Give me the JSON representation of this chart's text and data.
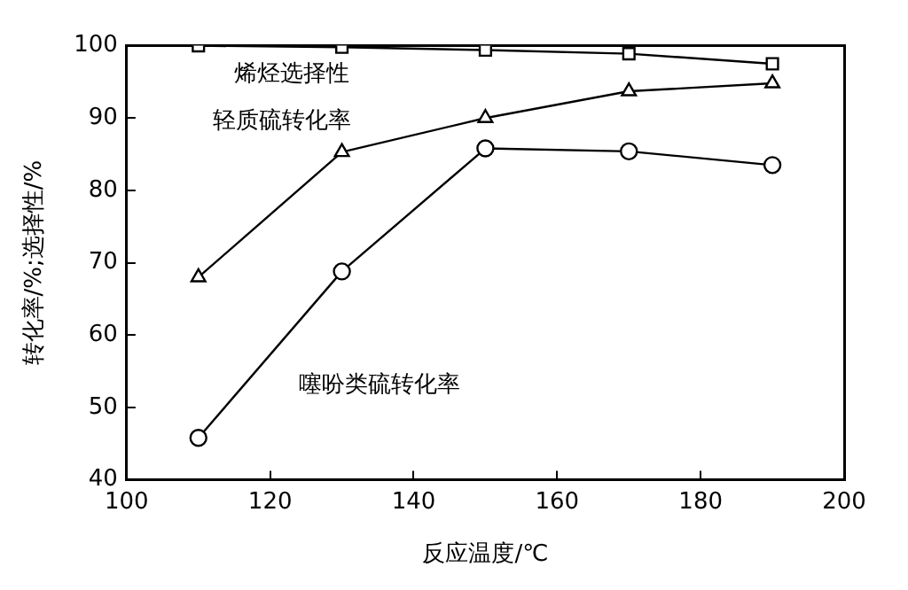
{
  "chart_data": {
    "type": "line",
    "xlabel": "反应温度/℃",
    "ylabel": "转化率/%;选择性/%",
    "x": [
      110,
      130,
      150,
      170,
      190
    ],
    "series": [
      {
        "name": "烯烃选择性",
        "color": "#000000",
        "marker": "square",
        "values": [
          100,
          99.8,
          99.4,
          98.9,
          97.5
        ]
      },
      {
        "name": "轻质硫转化率",
        "color": "#000000",
        "marker": "triangle",
        "values": [
          68,
          85.3,
          90,
          93.7,
          94.8
        ]
      },
      {
        "name": "噻吩类硫转化率",
        "color": "#000000",
        "marker": "circle",
        "values": [
          45.8,
          68.8,
          85.8,
          85.4,
          83.5
        ]
      }
    ],
    "xlim": [
      100,
      200
    ],
    "xticks": [
      100,
      120,
      140,
      160,
      180,
      200
    ],
    "ylim": [
      40,
      100
    ],
    "yticks": [
      40,
      50,
      60,
      70,
      80,
      90,
      100
    ],
    "grid": false,
    "legend": false
  }
}
